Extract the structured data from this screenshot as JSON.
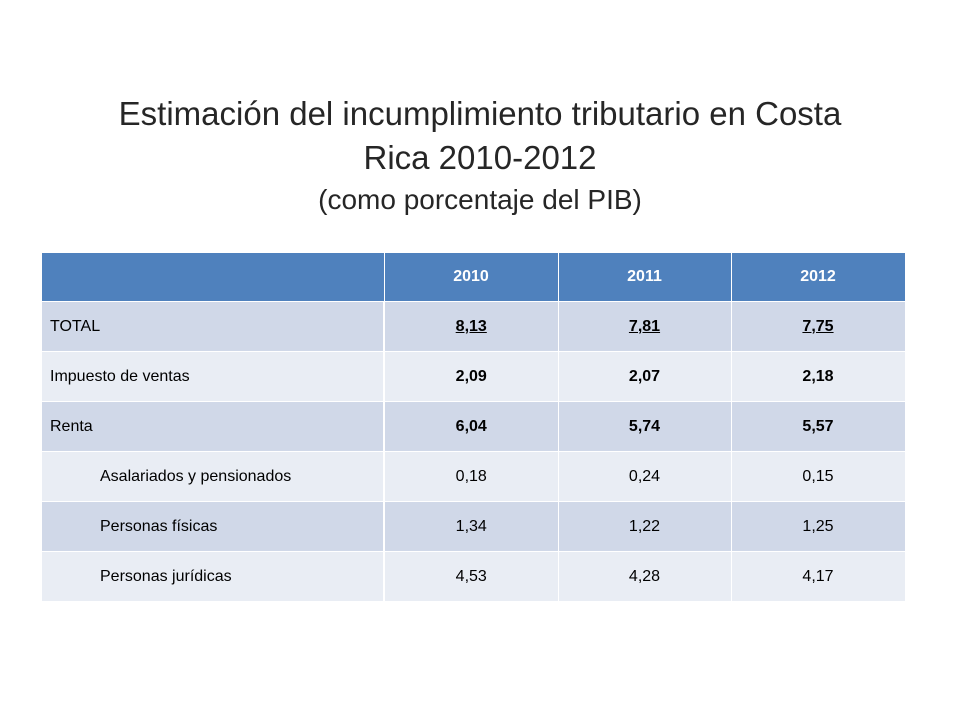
{
  "title": {
    "main_line1": "Estimación del incumplimiento tributario en Costa",
    "main_line2": "Rica 2010-2012",
    "subtitle": "(como porcentaje del PIB)"
  },
  "table": {
    "headers": [
      "",
      "2010",
      "2011",
      "2012"
    ],
    "rows": [
      {
        "label": "TOTAL",
        "values": [
          "8,13",
          "7,81",
          "7,75"
        ]
      },
      {
        "label": "Impuesto de ventas",
        "values": [
          "2,09",
          "2,07",
          "2,18"
        ]
      },
      {
        "label": "Renta",
        "values": [
          "6,04",
          "5,74",
          "5,57"
        ]
      },
      {
        "label": "Asalariados y pensionados",
        "values": [
          "0,18",
          "0,24",
          "0,15"
        ]
      },
      {
        "label": "Personas físicas",
        "values": [
          "1,34",
          "1,22",
          "1,25"
        ]
      },
      {
        "label": "Personas jurídicas",
        "values": [
          "4,53",
          "4,28",
          "4,17"
        ]
      }
    ]
  },
  "colors": {
    "header_bg": "#4f81bd",
    "row_dark": "#d0d8e8",
    "row_light": "#e9edf4"
  }
}
